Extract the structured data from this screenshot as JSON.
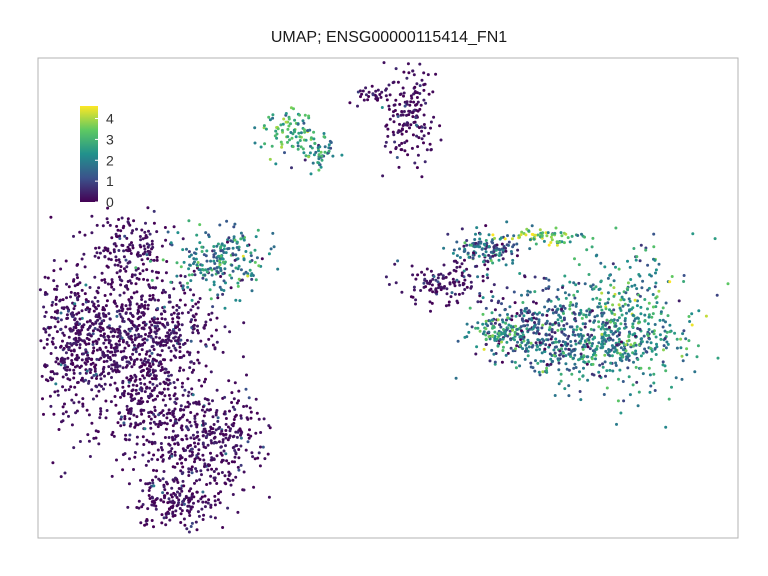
{
  "chart_data": {
    "type": "scatter",
    "title": "UMAP; ENSG00000115414_FN1",
    "xlabel": "",
    "ylabel": "",
    "grid": false,
    "axes_visible": false,
    "colormap": "viridis",
    "color_scale": {
      "min": 0,
      "max": 4.6,
      "ticks": [
        0,
        1,
        2,
        3,
        4
      ],
      "tick_labels": [
        "0",
        "1",
        "2",
        "3",
        "4"
      ],
      "legend_placement": "top-left"
    },
    "clusters": [
      {
        "cx": 0.13,
        "cy": 0.4,
        "sx": 0.03,
        "sy": 0.04,
        "n": 170,
        "level": 0.2
      },
      {
        "cx": 0.05,
        "cy": 0.6,
        "sx": 0.025,
        "sy": 0.09,
        "n": 260,
        "level": 0.35
      },
      {
        "cx": 0.1,
        "cy": 0.58,
        "sx": 0.05,
        "sy": 0.06,
        "n": 420,
        "level": 0.3
      },
      {
        "cx": 0.18,
        "cy": 0.56,
        "sx": 0.04,
        "sy": 0.05,
        "n": 280,
        "level": 0.3
      },
      {
        "cx": 0.15,
        "cy": 0.7,
        "sx": 0.04,
        "sy": 0.05,
        "n": 260,
        "level": 0.3
      },
      {
        "cx": 0.26,
        "cy": 0.42,
        "sx": 0.035,
        "sy": 0.035,
        "n": 220,
        "level": 2.1
      },
      {
        "cx": 0.22,
        "cy": 0.82,
        "sx": 0.04,
        "sy": 0.06,
        "n": 300,
        "level": 0.35
      },
      {
        "cx": 0.26,
        "cy": 0.78,
        "sx": 0.03,
        "sy": 0.05,
        "n": 150,
        "level": 0.5
      },
      {
        "cx": 0.2,
        "cy": 0.93,
        "sx": 0.03,
        "sy": 0.025,
        "n": 150,
        "level": 0.3
      },
      {
        "cx": 0.36,
        "cy": 0.15,
        "sx": 0.02,
        "sy": 0.025,
        "n": 90,
        "level": 2.8
      },
      {
        "cx": 0.4,
        "cy": 0.2,
        "sx": 0.012,
        "sy": 0.02,
        "n": 50,
        "level": 2.4
      },
      {
        "cx": 0.53,
        "cy": 0.12,
        "sx": 0.02,
        "sy": 0.05,
        "n": 170,
        "level": 0.35
      },
      {
        "cx": 0.48,
        "cy": 0.08,
        "sx": 0.015,
        "sy": 0.01,
        "n": 30,
        "level": 0.3
      },
      {
        "cx": 0.84,
        "cy": 0.55,
        "sx": 0.05,
        "sy": 0.07,
        "n": 460,
        "level": 2.3
      },
      {
        "cx": 0.76,
        "cy": 0.6,
        "sx": 0.05,
        "sy": 0.04,
        "n": 300,
        "level": 1.8
      },
      {
        "cx": 0.7,
        "cy": 0.55,
        "sx": 0.04,
        "sy": 0.04,
        "n": 200,
        "level": 1.1
      },
      {
        "cx": 0.64,
        "cy": 0.4,
        "sx": 0.025,
        "sy": 0.02,
        "n": 140,
        "level": 1.4
      },
      {
        "cx": 0.72,
        "cy": 0.37,
        "sx": 0.03,
        "sy": 0.008,
        "n": 70,
        "level": 3.4
      },
      {
        "cx": 0.58,
        "cy": 0.47,
        "sx": 0.03,
        "sy": 0.02,
        "n": 120,
        "level": 0.4
      },
      {
        "cx": 0.66,
        "cy": 0.57,
        "sx": 0.02,
        "sy": 0.02,
        "n": 90,
        "level": 2.6
      }
    ]
  }
}
